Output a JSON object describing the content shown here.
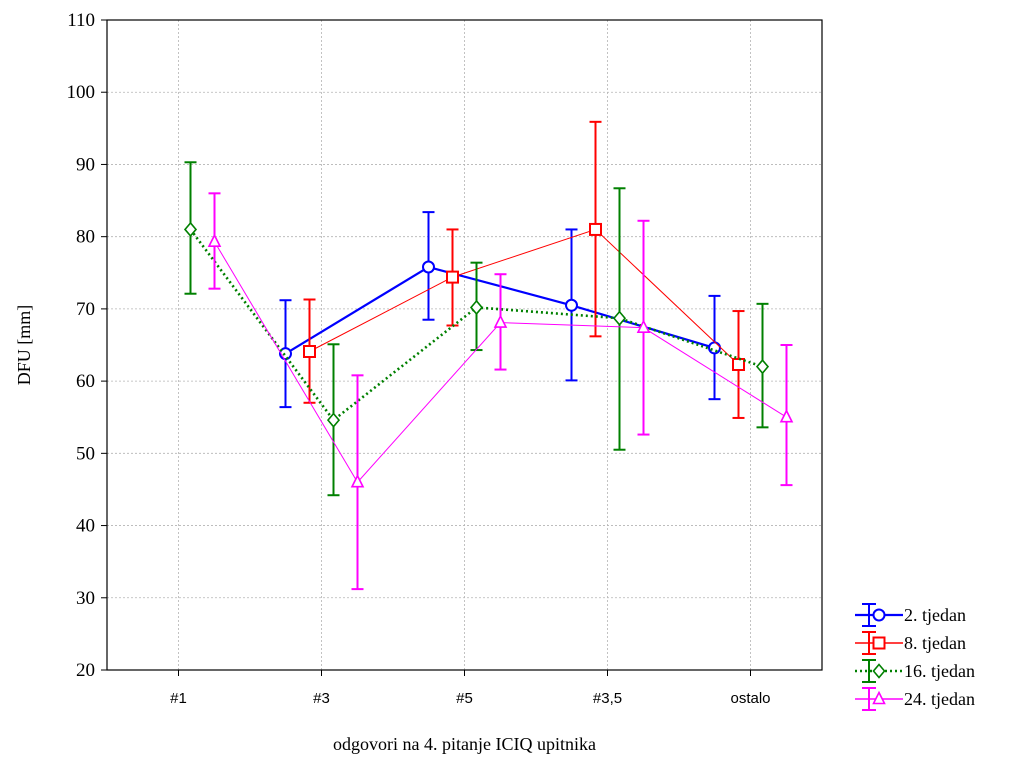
{
  "chart_data": {
    "type": "line",
    "error_bars": true,
    "title": "",
    "xlabel": "odgovori na 4. pitanje ICIQ upitnika",
    "ylabel": "DFU [mm]",
    "ylim": [
      20,
      110
    ],
    "yticks": [
      20,
      30,
      40,
      50,
      60,
      70,
      80,
      90,
      100,
      110
    ],
    "grid": true,
    "legend_position": "bottom-right outside",
    "categories": [
      "#1",
      "#3",
      "#5",
      "#3,5",
      "ostalo"
    ],
    "series": [
      {
        "name": "2. tjedan",
        "color": "#0000ff",
        "marker": "circle",
        "line_style": "solid",
        "values": [
          null,
          63.8,
          75.8,
          70.5,
          64.6
        ],
        "lower": [
          null,
          56.4,
          68.5,
          60.1,
          57.5
        ],
        "upper": [
          null,
          71.2,
          83.4,
          81.0,
          71.8
        ]
      },
      {
        "name": "8. tjedan",
        "color": "#ff0000",
        "marker": "square",
        "line_style": "thin",
        "values": [
          null,
          64.1,
          74.4,
          81.0,
          62.3
        ],
        "lower": [
          null,
          57.0,
          67.7,
          66.2,
          54.9
        ],
        "upper": [
          null,
          71.3,
          81.0,
          95.9,
          69.7
        ]
      },
      {
        "name": "16. tjedan",
        "color": "#008000",
        "marker": "diamond",
        "line_style": "dotted",
        "values": [
          81.0,
          54.6,
          70.2,
          68.7,
          62.0
        ],
        "lower": [
          72.1,
          44.2,
          64.3,
          50.5,
          53.6
        ],
        "upper": [
          90.3,
          65.1,
          76.4,
          86.7,
          70.7
        ]
      },
      {
        "name": "24. tjedan",
        "color": "#ff00ff",
        "marker": "triangle",
        "line_style": "thin",
        "values": [
          79.3,
          46.0,
          68.1,
          67.4,
          55.0
        ],
        "lower": [
          72.8,
          31.2,
          61.6,
          52.6,
          45.6
        ],
        "upper": [
          86.0,
          60.8,
          74.8,
          82.2,
          65.0
        ]
      }
    ]
  }
}
